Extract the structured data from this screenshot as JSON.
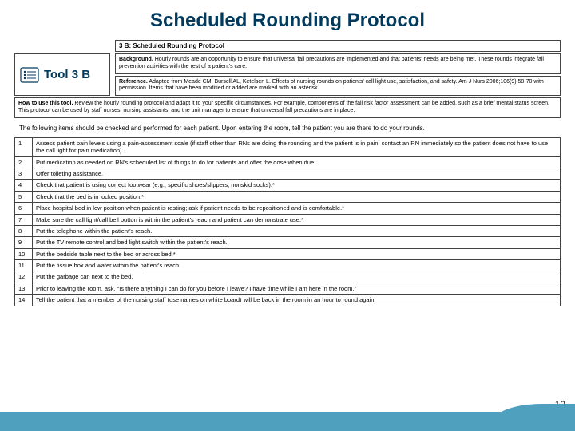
{
  "title": "Scheduled Rounding Protocol",
  "sub_heading": "3 B: Scheduled Rounding Protocol",
  "tool_label": "Tool 3 B",
  "background_label": "Background.",
  "background_text": "Hourly rounds are an opportunity to ensure that universal fall precautions are implemented and that patients' needs are being met. These rounds integrate fall prevention activities with the rest of a patient's care.",
  "reference_label": "Reference.",
  "reference_text": "Adapted from Meade CM, Bursell AL, Ketelsen L. Effects of nursing rounds on patients' call light use, satisfaction, and safety. Am J Nurs 2006;106(9):58-70 with permission. Items that have been modified or added are marked with an asterisk.",
  "howto_label": "How to use this tool.",
  "howto_text": "Review the hourly rounding protocol and adapt it to your specific circumstances. For example, components of the fall risk factor assessment can be added, such as a brief mental status screen. This protocol can be used by staff nurses, nursing assistants, and the unit manager to ensure that universal fall precautions are in place.",
  "intro": "The following items should be checked and performed for each patient. Upon entering the room, tell the patient you are there to do your rounds.",
  "rows": [
    {
      "n": "1",
      "t": "Assess patient pain levels using a pain-assessment scale (if staff other than RNs are doing the rounding and the patient is in pain, contact an RN immediately so the patient does not have to use the call light for pain medication)."
    },
    {
      "n": "2",
      "t": "Put medication as needed on RN's scheduled list of things to do for patients and offer the dose when due."
    },
    {
      "n": "3",
      "t": "Offer toileting assistance."
    },
    {
      "n": "4",
      "t": "Check that patient is using correct footwear (e.g., specific shoes/slippers, nonskid socks).*"
    },
    {
      "n": "5",
      "t": "Check that the bed is in locked position.*"
    },
    {
      "n": "6",
      "t": "Place hospital bed in low position when patient is resting; ask if patient needs to be repositioned and is comfortable.*"
    },
    {
      "n": "7",
      "t": "Make sure the call light/call bell button is within the patient's reach and patient can demonstrate use.*"
    },
    {
      "n": "8",
      "t": "Put the telephone within the patient's reach."
    },
    {
      "n": "9",
      "t": "Put the TV remote control and bed light switch within the patient's reach."
    },
    {
      "n": "10",
      "t": "Put the bedside table next to the bed or across bed.*"
    },
    {
      "n": "11",
      "t": "Put the tissue box and water within the patient's reach."
    },
    {
      "n": "12",
      "t": "Put the garbage can next to the bed."
    },
    {
      "n": "13",
      "t": "Prior to leaving the room, ask, “Is there anything I can do for you before I leave? I have time while I am here in the room.”"
    },
    {
      "n": "14",
      "t": "Tell the patient that a member of the nursing staff (use names on white board) will be back in the room in an hour to round again."
    }
  ],
  "page_number": "12",
  "colors": {
    "title": "#003a5d",
    "footer": "#4f9fbf",
    "border": "#444444",
    "bg": "#ffffff"
  }
}
